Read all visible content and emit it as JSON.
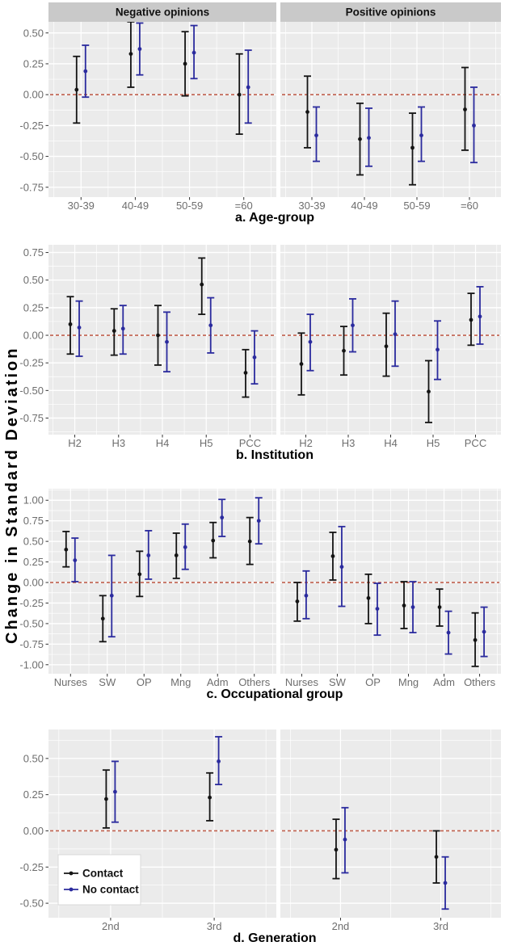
{
  "figure": {
    "y_axis_title": "Change in Standard Deviation",
    "facet_labels": [
      "Negative opinions",
      "Positive opinions"
    ],
    "colors": {
      "contact": "#141414",
      "no_contact": "#2b2b9e",
      "ref_line": "#c0604e",
      "panel_bg": "#ebebeb",
      "strip_bg": "#c9c9c9",
      "grid": "#ffffff",
      "axis_text": "#6e6e6e",
      "tick_mark": "#333333",
      "title_text": "#000000",
      "legend_bg": "#ffffff",
      "legend_border": "#d9d9d9"
    },
    "legend": {
      "items": [
        {
          "label": "Contact",
          "series": "contact"
        },
        {
          "label": "No contact",
          "series": "no_contact"
        }
      ]
    }
  },
  "chart_data": [
    {
      "type": "pointrange-errorbar",
      "panel_id": "a",
      "title": "a. Age-group",
      "categories": [
        "30-39",
        "40-49",
        "50-59",
        "=60"
      ],
      "yticks": [
        0.5,
        0.25,
        0.0,
        -0.25,
        -0.5,
        -0.75
      ],
      "ylim": [
        -0.83,
        0.59
      ],
      "ref_y": 0,
      "facets": [
        {
          "label": "Negative opinions",
          "series": [
            {
              "name": "Contact",
              "points": [
                {
                  "y": 0.04,
                  "lo": -0.23,
                  "hi": 0.31
                },
                {
                  "y": 0.33,
                  "lo": 0.06,
                  "hi": 0.59
                },
                {
                  "y": 0.25,
                  "lo": -0.01,
                  "hi": 0.51
                },
                {
                  "y": 0.0,
                  "lo": -0.32,
                  "hi": 0.33
                }
              ]
            },
            {
              "name": "No contact",
              "points": [
                {
                  "y": 0.19,
                  "lo": -0.02,
                  "hi": 0.4
                },
                {
                  "y": 0.37,
                  "lo": 0.16,
                  "hi": 0.58
                },
                {
                  "y": 0.34,
                  "lo": 0.13,
                  "hi": 0.56
                },
                {
                  "y": 0.06,
                  "lo": -0.23,
                  "hi": 0.36
                }
              ]
            }
          ]
        },
        {
          "label": "Positive opinions",
          "series": [
            {
              "name": "Contact",
              "points": [
                {
                  "y": -0.14,
                  "lo": -0.43,
                  "hi": 0.15
                },
                {
                  "y": -0.36,
                  "lo": -0.65,
                  "hi": -0.07
                },
                {
                  "y": -0.43,
                  "lo": -0.73,
                  "hi": -0.15
                },
                {
                  "y": -0.12,
                  "lo": -0.45,
                  "hi": 0.22
                }
              ]
            },
            {
              "name": "No contact",
              "points": [
                {
                  "y": -0.33,
                  "lo": -0.54,
                  "hi": -0.1
                },
                {
                  "y": -0.35,
                  "lo": -0.58,
                  "hi": -0.11
                },
                {
                  "y": -0.33,
                  "lo": -0.54,
                  "hi": -0.1
                },
                {
                  "y": -0.25,
                  "lo": -0.55,
                  "hi": 0.06
                }
              ]
            }
          ]
        }
      ]
    },
    {
      "type": "pointrange-errorbar",
      "panel_id": "b",
      "title": "b. Institution",
      "categories": [
        "H2",
        "H3",
        "H4",
        "H5",
        "PCC"
      ],
      "yticks": [
        0.75,
        0.5,
        0.25,
        0.0,
        -0.25,
        -0.5,
        -0.75
      ],
      "ylim": [
        -0.9,
        0.82
      ],
      "ref_y": 0,
      "facets": [
        {
          "label": "Negative opinions",
          "series": [
            {
              "name": "Contact",
              "points": [
                {
                  "y": 0.1,
                  "lo": -0.17,
                  "hi": 0.35
                },
                {
                  "y": 0.04,
                  "lo": -0.18,
                  "hi": 0.24
                },
                {
                  "y": 0.0,
                  "lo": -0.27,
                  "hi": 0.27
                },
                {
                  "y": 0.46,
                  "lo": 0.19,
                  "hi": 0.7
                },
                {
                  "y": -0.34,
                  "lo": -0.56,
                  "hi": -0.13
                }
              ]
            },
            {
              "name": "No contact",
              "points": [
                {
                  "y": 0.07,
                  "lo": -0.19,
                  "hi": 0.31
                },
                {
                  "y": 0.06,
                  "lo": -0.17,
                  "hi": 0.27
                },
                {
                  "y": -0.06,
                  "lo": -0.33,
                  "hi": 0.21
                },
                {
                  "y": 0.09,
                  "lo": -0.16,
                  "hi": 0.34
                },
                {
                  "y": -0.2,
                  "lo": -0.44,
                  "hi": 0.04
                }
              ]
            }
          ]
        },
        {
          "label": "Positive opinions",
          "series": [
            {
              "name": "Contact",
              "points": [
                {
                  "y": -0.26,
                  "lo": -0.54,
                  "hi": 0.02
                },
                {
                  "y": -0.14,
                  "lo": -0.36,
                  "hi": 0.08
                },
                {
                  "y": -0.1,
                  "lo": -0.37,
                  "hi": 0.2
                },
                {
                  "y": -0.51,
                  "lo": -0.79,
                  "hi": -0.23
                },
                {
                  "y": 0.14,
                  "lo": -0.09,
                  "hi": 0.38
                }
              ]
            },
            {
              "name": "No contact",
              "points": [
                {
                  "y": -0.06,
                  "lo": -0.32,
                  "hi": 0.19
                },
                {
                  "y": 0.09,
                  "lo": -0.15,
                  "hi": 0.33
                },
                {
                  "y": 0.01,
                  "lo": -0.28,
                  "hi": 0.31
                },
                {
                  "y": -0.13,
                  "lo": -0.4,
                  "hi": 0.13
                },
                {
                  "y": 0.17,
                  "lo": -0.08,
                  "hi": 0.44
                }
              ]
            }
          ]
        }
      ]
    },
    {
      "type": "pointrange-errorbar",
      "panel_id": "c",
      "title": "c. Occupational group",
      "categories": [
        "Nurses",
        "SW",
        "OP",
        "Mng",
        "Adm",
        "Others"
      ],
      "yticks": [
        1.0,
        0.75,
        0.5,
        0.25,
        0.0,
        -0.25,
        -0.5,
        -0.75,
        -1.0
      ],
      "ylim": [
        -1.11,
        1.14
      ],
      "ref_y": 0,
      "facets": [
        {
          "label": "Negative opinions",
          "series": [
            {
              "name": "Contact",
              "points": [
                {
                  "y": 0.4,
                  "lo": 0.19,
                  "hi": 0.62
                },
                {
                  "y": -0.44,
                  "lo": -0.72,
                  "hi": -0.16
                },
                {
                  "y": 0.1,
                  "lo": -0.17,
                  "hi": 0.38
                },
                {
                  "y": 0.33,
                  "lo": 0.05,
                  "hi": 0.6
                },
                {
                  "y": 0.51,
                  "lo": 0.3,
                  "hi": 0.73
                },
                {
                  "y": 0.5,
                  "lo": 0.22,
                  "hi": 0.79
                }
              ]
            },
            {
              "name": "No contact",
              "points": [
                {
                  "y": 0.27,
                  "lo": 0.01,
                  "hi": 0.54
                },
                {
                  "y": -0.16,
                  "lo": -0.66,
                  "hi": 0.33
                },
                {
                  "y": 0.33,
                  "lo": 0.04,
                  "hi": 0.63
                },
                {
                  "y": 0.43,
                  "lo": 0.16,
                  "hi": 0.71
                },
                {
                  "y": 0.79,
                  "lo": 0.56,
                  "hi": 1.01
                },
                {
                  "y": 0.75,
                  "lo": 0.47,
                  "hi": 1.03
                }
              ]
            }
          ]
        },
        {
          "label": "Positive opinions",
          "series": [
            {
              "name": "Contact",
              "points": [
                {
                  "y": -0.23,
                  "lo": -0.47,
                  "hi": 0.0
                },
                {
                  "y": 0.32,
                  "lo": 0.03,
                  "hi": 0.61
                },
                {
                  "y": -0.19,
                  "lo": -0.5,
                  "hi": 0.1
                },
                {
                  "y": -0.28,
                  "lo": -0.56,
                  "hi": 0.01
                },
                {
                  "y": -0.3,
                  "lo": -0.53,
                  "hi": -0.08
                },
                {
                  "y": -0.7,
                  "lo": -1.02,
                  "hi": -0.37
                }
              ]
            },
            {
              "name": "No contact",
              "points": [
                {
                  "y": -0.16,
                  "lo": -0.44,
                  "hi": 0.14
                },
                {
                  "y": 0.19,
                  "lo": -0.29,
                  "hi": 0.68
                },
                {
                  "y": -0.32,
                  "lo": -0.64,
                  "hi": -0.01
                },
                {
                  "y": -0.3,
                  "lo": -0.61,
                  "hi": 0.01
                },
                {
                  "y": -0.61,
                  "lo": -0.87,
                  "hi": -0.35
                },
                {
                  "y": -0.6,
                  "lo": -0.9,
                  "hi": -0.3
                }
              ]
            }
          ]
        }
      ]
    },
    {
      "type": "pointrange-errorbar",
      "panel_id": "d",
      "title": "d. Generation",
      "categories": [
        "2nd",
        "3rd"
      ],
      "yticks": [
        0.5,
        0.25,
        0.0,
        -0.25,
        -0.5
      ],
      "ylim": [
        -0.6,
        0.7
      ],
      "ref_y": 0,
      "legend_visible": true,
      "facets": [
        {
          "label": "Negative opinions",
          "series": [
            {
              "name": "Contact",
              "points": [
                {
                  "y": 0.22,
                  "lo": 0.02,
                  "hi": 0.42
                },
                {
                  "y": 0.23,
                  "lo": 0.07,
                  "hi": 0.4
                }
              ]
            },
            {
              "name": "No contact",
              "points": [
                {
                  "y": 0.27,
                  "lo": 0.06,
                  "hi": 0.48
                },
                {
                  "y": 0.48,
                  "lo": 0.32,
                  "hi": 0.65
                }
              ]
            }
          ]
        },
        {
          "label": "Positive opinions",
          "series": [
            {
              "name": "Contact",
              "points": [
                {
                  "y": -0.13,
                  "lo": -0.33,
                  "hi": 0.08
                },
                {
                  "y": -0.18,
                  "lo": -0.36,
                  "hi": 0.0
                }
              ]
            },
            {
              "name": "No contact",
              "points": [
                {
                  "y": -0.06,
                  "lo": -0.29,
                  "hi": 0.16
                },
                {
                  "y": -0.36,
                  "lo": -0.54,
                  "hi": -0.18
                }
              ]
            }
          ]
        }
      ]
    }
  ]
}
